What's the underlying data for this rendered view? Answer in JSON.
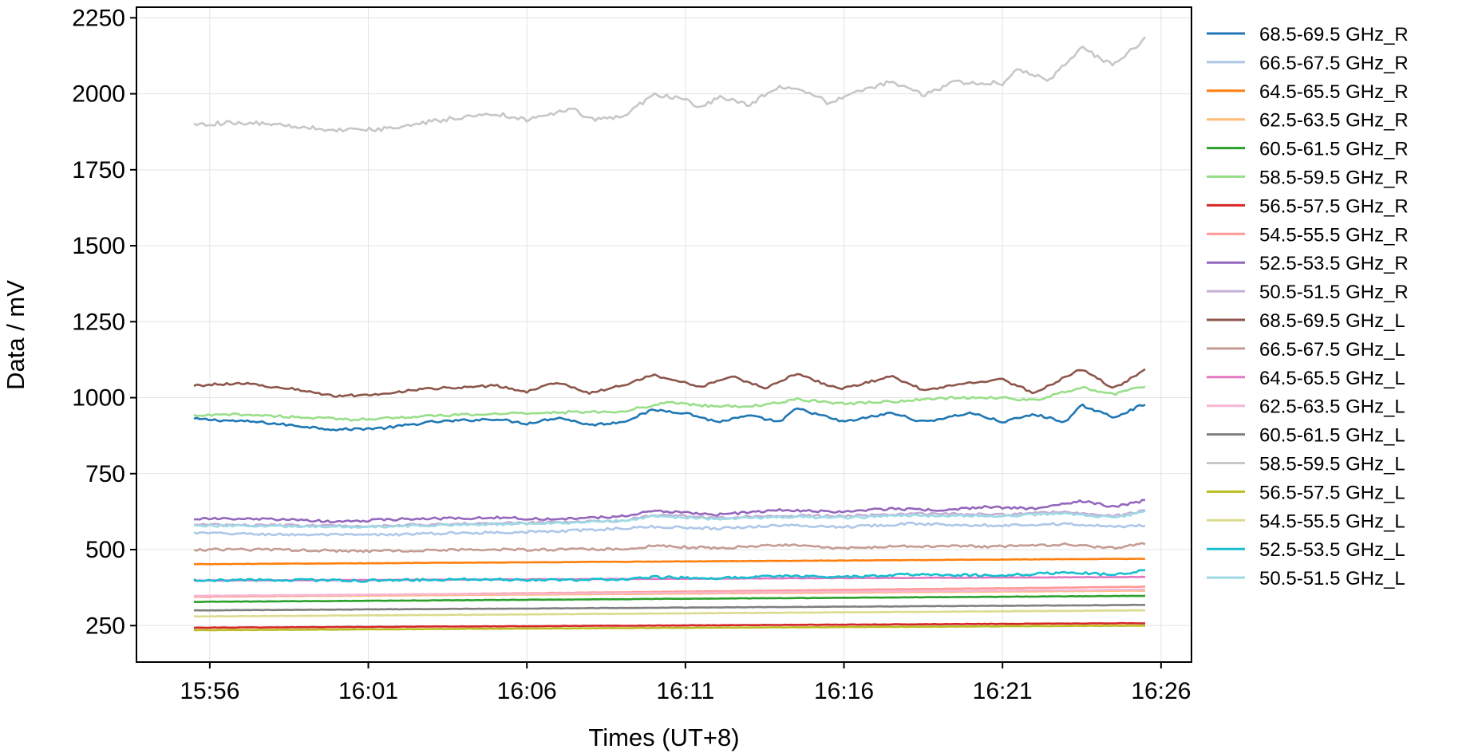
{
  "chart_data": {
    "type": "line",
    "xlabel": "Times (UT+8)",
    "ylabel": "Data / mV",
    "x_start": "15:55:30",
    "x_end": "16:25:30",
    "xticks": [
      "15:56",
      "16:01",
      "16:06",
      "16:11",
      "16:16",
      "16:21",
      "16:26"
    ],
    "ylim": [
      130,
      2285
    ],
    "yticks": [
      250,
      500,
      750,
      1000,
      1250,
      1500,
      1750,
      2000,
      2250
    ],
    "grid": true,
    "legend_position": "right",
    "series": [
      {
        "name": "68.5-69.5 GHz_R",
        "color": "#1f77b4",
        "keypoints": [
          [
            "15:55:30",
            930
          ],
          [
            "15:57:30",
            920
          ],
          [
            "15:58:30",
            910
          ],
          [
            "16:00:00",
            895
          ],
          [
            "16:01:30",
            900
          ],
          [
            "16:03:00",
            920
          ],
          [
            "16:05:00",
            930
          ],
          [
            "16:06:00",
            915
          ],
          [
            "16:07:00",
            935
          ],
          [
            "16:08:00",
            910
          ],
          [
            "16:09:00",
            920
          ],
          [
            "16:10:00",
            960
          ],
          [
            "16:11:00",
            950
          ],
          [
            "16:12:00",
            920
          ],
          [
            "16:13:00",
            940
          ],
          [
            "16:14:00",
            920
          ],
          [
            "16:14:30",
            965
          ],
          [
            "16:16:00",
            920
          ],
          [
            "16:17:30",
            950
          ],
          [
            "16:18:30",
            920
          ],
          [
            "16:20:00",
            950
          ],
          [
            "16:21:00",
            920
          ],
          [
            "16:22:00",
            945
          ],
          [
            "16:23:00",
            920
          ],
          [
            "16:23:30",
            975
          ],
          [
            "16:24:30",
            935
          ],
          [
            "16:25:30",
            980
          ]
        ]
      },
      {
        "name": "66.5-67.5 GHz_R",
        "color": "#aec7e8",
        "keypoints": [
          [
            "15:55:30",
            555
          ],
          [
            "15:58:00",
            550
          ],
          [
            "16:01:00",
            548
          ],
          [
            "16:04:00",
            555
          ],
          [
            "16:07:00",
            560
          ],
          [
            "16:09:00",
            570
          ],
          [
            "16:10:00",
            575
          ],
          [
            "16:12:00",
            570
          ],
          [
            "16:14:00",
            580
          ],
          [
            "16:16:00",
            575
          ],
          [
            "16:18:00",
            585
          ],
          [
            "16:21:00",
            580
          ],
          [
            "16:23:00",
            585
          ],
          [
            "16:24:30",
            575
          ],
          [
            "16:25:30",
            580
          ]
        ]
      },
      {
        "name": "64.5-65.5 GHz_R",
        "color": "#ff7f0e",
        "start": 452,
        "end": 470
      },
      {
        "name": "62.5-63.5 GHz_R",
        "color": "#ffbb78",
        "start": 345,
        "end": 365
      },
      {
        "name": "60.5-61.5 GHz_R",
        "color": "#2ca02c",
        "start": 328,
        "end": 348
      },
      {
        "name": "58.5-59.5 GHz_R",
        "color": "#98df8a",
        "keypoints": [
          [
            "15:55:30",
            940
          ],
          [
            "15:57:00",
            945
          ],
          [
            "15:59:00",
            935
          ],
          [
            "16:00:30",
            928
          ],
          [
            "16:03:00",
            940
          ],
          [
            "16:06:00",
            950
          ],
          [
            "16:09:00",
            955
          ],
          [
            "16:10:30",
            985
          ],
          [
            "16:12:00",
            970
          ],
          [
            "16:13:30",
            975
          ],
          [
            "16:14:30",
            995
          ],
          [
            "16:16:00",
            980
          ],
          [
            "16:18:00",
            990
          ],
          [
            "16:19:30",
            1000
          ],
          [
            "16:21:00",
            1000
          ],
          [
            "16:22:00",
            990
          ],
          [
            "16:23:30",
            1035
          ],
          [
            "16:24:30",
            1010
          ],
          [
            "16:25:30",
            1040
          ]
        ]
      },
      {
        "name": "56.5-57.5 GHz_R",
        "color": "#d62728",
        "start": 243,
        "end": 258
      },
      {
        "name": "54.5-55.5 GHz_R",
        "color": "#ff9896",
        "start": 345,
        "end": 378
      },
      {
        "name": "52.5-53.5 GHz_R",
        "color": "#9467bd",
        "keypoints": [
          [
            "15:55:30",
            602
          ],
          [
            "15:58:00",
            600
          ],
          [
            "16:00:00",
            592
          ],
          [
            "16:02:00",
            600
          ],
          [
            "16:05:00",
            605
          ],
          [
            "16:07:00",
            600
          ],
          [
            "16:09:00",
            610
          ],
          [
            "16:10:00",
            628
          ],
          [
            "16:12:00",
            615
          ],
          [
            "16:14:00",
            630
          ],
          [
            "16:16:00",
            625
          ],
          [
            "16:17:30",
            635
          ],
          [
            "16:19:00",
            630
          ],
          [
            "16:20:30",
            640
          ],
          [
            "16:22:00",
            635
          ],
          [
            "16:23:30",
            660
          ],
          [
            "16:24:30",
            640
          ],
          [
            "16:25:30",
            662
          ]
        ]
      },
      {
        "name": "50.5-51.5 GHz_R",
        "color": "#c5b0d5",
        "keypoints": [
          [
            "15:55:30",
            582
          ],
          [
            "15:58:00",
            580
          ],
          [
            "16:01:00",
            578
          ],
          [
            "16:04:00",
            585
          ],
          [
            "16:07:00",
            590
          ],
          [
            "16:09:00",
            595
          ],
          [
            "16:10:00",
            615
          ],
          [
            "16:12:00",
            605
          ],
          [
            "16:14:00",
            612
          ],
          [
            "16:16:00",
            610
          ],
          [
            "16:18:00",
            618
          ],
          [
            "16:21:00",
            615
          ],
          [
            "16:23:00",
            625
          ],
          [
            "16:24:30",
            610
          ],
          [
            "16:25:30",
            628
          ]
        ]
      },
      {
        "name": "68.5-69.5 GHz_L",
        "color": "#8c564b",
        "keypoints": [
          [
            "15:55:30",
            1040
          ],
          [
            "15:57:00",
            1048
          ],
          [
            "15:58:30",
            1030
          ],
          [
            "16:00:00",
            1005
          ],
          [
            "16:01:00",
            1010
          ],
          [
            "16:03:00",
            1030
          ],
          [
            "16:05:00",
            1040
          ],
          [
            "16:06:00",
            1020
          ],
          [
            "16:07:00",
            1050
          ],
          [
            "16:08:00",
            1015
          ],
          [
            "16:09:00",
            1040
          ],
          [
            "16:10:00",
            1075
          ],
          [
            "16:11:30",
            1035
          ],
          [
            "16:12:30",
            1070
          ],
          [
            "16:13:30",
            1030
          ],
          [
            "16:14:30",
            1080
          ],
          [
            "16:15:30",
            1040
          ],
          [
            "16:16:00",
            1030
          ],
          [
            "16:17:30",
            1070
          ],
          [
            "16:18:30",
            1025
          ],
          [
            "16:20:00",
            1050
          ],
          [
            "16:21:00",
            1060
          ],
          [
            "16:22:00",
            1015
          ],
          [
            "16:23:30",
            1095
          ],
          [
            "16:24:30",
            1030
          ],
          [
            "16:25:30",
            1090
          ]
        ]
      },
      {
        "name": "66.5-67.5 GHz_L",
        "color": "#c49c94",
        "keypoints": [
          [
            "15:55:30",
            500
          ],
          [
            "15:58:00",
            500
          ],
          [
            "16:01:00",
            495
          ],
          [
            "16:04:00",
            500
          ],
          [
            "16:07:00",
            500
          ],
          [
            "16:09:00",
            502
          ],
          [
            "16:10:00",
            512
          ],
          [
            "16:12:00",
            505
          ],
          [
            "16:14:00",
            515
          ],
          [
            "16:16:00",
            505
          ],
          [
            "16:18:00",
            512
          ],
          [
            "16:21:00",
            510
          ],
          [
            "16:23:00",
            518
          ],
          [
            "16:24:30",
            505
          ],
          [
            "16:25:30",
            520
          ]
        ]
      },
      {
        "name": "64.5-65.5 GHz_L",
        "color": "#e377c2",
        "start": 398,
        "end": 410
      },
      {
        "name": "62.5-63.5 GHz_L",
        "color": "#f7b6d2",
        "start": 348,
        "end": 368
      },
      {
        "name": "60.5-61.5 GHz_L",
        "color": "#7f7f7f",
        "start": 300,
        "end": 318
      },
      {
        "name": "58.5-59.5 GHz_L",
        "color": "#c7c7c7",
        "keypoints": [
          [
            "15:55:30",
            1900
          ],
          [
            "15:57:00",
            1905
          ],
          [
            "15:58:30",
            1895
          ],
          [
            "16:00:00",
            1880
          ],
          [
            "16:01:30",
            1885
          ],
          [
            "16:03:00",
            1910
          ],
          [
            "16:05:00",
            1935
          ],
          [
            "16:06:00",
            1915
          ],
          [
            "16:07:30",
            1950
          ],
          [
            "16:08:00",
            1915
          ],
          [
            "16:09:00",
            1925
          ],
          [
            "16:10:00",
            1995
          ],
          [
            "16:11:00",
            1985
          ],
          [
            "16:11:30",
            1950
          ],
          [
            "16:12:00",
            1990
          ],
          [
            "16:13:00",
            1965
          ],
          [
            "16:14:00",
            2025
          ],
          [
            "16:15:00",
            2000
          ],
          [
            "16:15:30",
            1970
          ],
          [
            "16:16:30",
            2010
          ],
          [
            "16:17:30",
            2040
          ],
          [
            "16:18:30",
            1995
          ],
          [
            "16:19:30",
            2040
          ],
          [
            "16:21:00",
            2035
          ],
          [
            "16:21:30",
            2080
          ],
          [
            "16:22:30",
            2045
          ],
          [
            "16:23:30",
            2155
          ],
          [
            "16:24:00",
            2120
          ],
          [
            "16:24:30",
            2095
          ],
          [
            "16:25:30",
            2180
          ]
        ]
      },
      {
        "name": "56.5-57.5 GHz_L",
        "color": "#bcbd22",
        "start": 235,
        "end": 250
      },
      {
        "name": "54.5-55.5 GHz_L",
        "color": "#dbdb8d",
        "start": 280,
        "end": 300
      },
      {
        "name": "52.5-53.5 GHz_L",
        "color": "#17becf",
        "keypoints": [
          [
            "15:55:30",
            400
          ],
          [
            "15:58:00",
            400
          ],
          [
            "16:01:00",
            398
          ],
          [
            "16:04:00",
            402
          ],
          [
            "16:07:00",
            400
          ],
          [
            "16:09:00",
            402
          ],
          [
            "16:10:00",
            410
          ],
          [
            "16:12:00",
            405
          ],
          [
            "16:14:00",
            415
          ],
          [
            "16:16:00",
            410
          ],
          [
            "16:18:00",
            418
          ],
          [
            "16:21:00",
            415
          ],
          [
            "16:23:00",
            425
          ],
          [
            "16:24:30",
            418
          ],
          [
            "16:25:30",
            432
          ]
        ]
      },
      {
        "name": "50.5-51.5 GHz_L",
        "color": "#9edae5",
        "keypoints": [
          [
            "15:55:30",
            580
          ],
          [
            "15:58:00",
            578
          ],
          [
            "16:01:00",
            575
          ],
          [
            "16:04:00",
            582
          ],
          [
            "16:07:00",
            588
          ],
          [
            "16:09:00",
            595
          ],
          [
            "16:10:00",
            610
          ],
          [
            "16:12:00",
            600
          ],
          [
            "16:14:00",
            608
          ],
          [
            "16:16:00",
            605
          ],
          [
            "16:18:00",
            612
          ],
          [
            "16:21:00",
            610
          ],
          [
            "16:23:00",
            620
          ],
          [
            "16:24:30",
            605
          ],
          [
            "16:25:30",
            625
          ]
        ]
      }
    ]
  }
}
